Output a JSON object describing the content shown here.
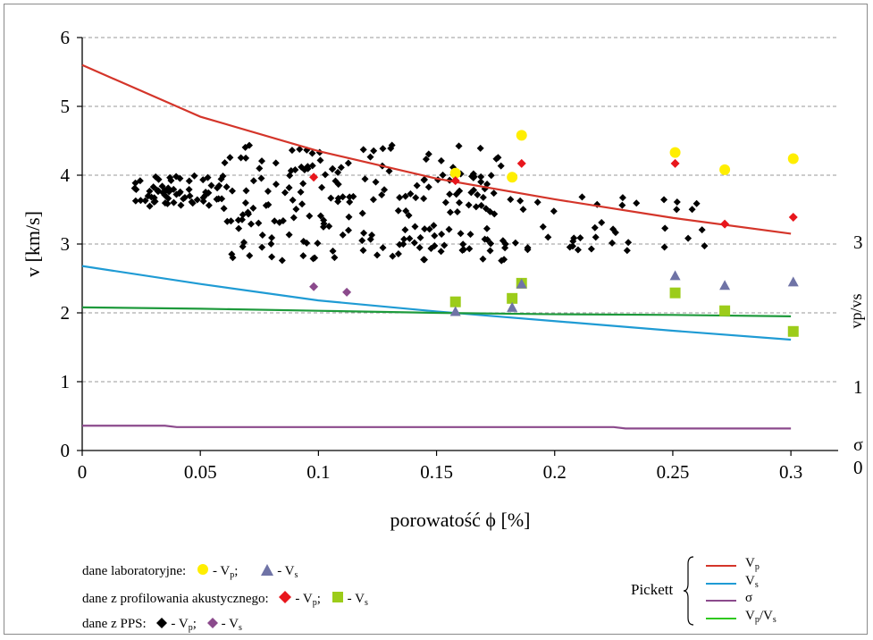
{
  "chart_data": {
    "type": "scatter",
    "xlabel": "porowatość ϕ [%]",
    "ylabel": "v [km/s]",
    "xlim": [
      0,
      0.32
    ],
    "ylim": [
      0,
      6
    ],
    "x_ticks": [
      "0",
      "0.05",
      "0.1",
      "0.15",
      "0.2",
      "0.25",
      "0.3"
    ],
    "y_ticks": [
      "0",
      "1",
      "2",
      "3",
      "4",
      "5",
      "6"
    ],
    "right_ticks": [
      "0",
      "1",
      "3"
    ],
    "right_axis_labels": {
      "ratio": "vp/vs",
      "sigma": "σ"
    },
    "grid": "horizontal-dashed",
    "pickett_lines": [
      {
        "name": "Vp",
        "color": "#d4352a",
        "x": [
          0,
          0.05,
          0.1,
          0.15,
          0.2,
          0.25,
          0.3
        ],
        "y": [
          5.6,
          4.85,
          4.35,
          3.95,
          3.65,
          3.38,
          3.15
        ]
      },
      {
        "name": "Vs",
        "color": "#1f9bd4",
        "x": [
          0,
          0.05,
          0.1,
          0.15,
          0.2,
          0.25,
          0.3
        ],
        "y": [
          2.68,
          2.42,
          2.18,
          2.02,
          1.88,
          1.74,
          1.61
        ]
      },
      {
        "name": "σ",
        "color": "#8b4a8c",
        "x": [
          0,
          0.035,
          0.04,
          0.225,
          0.23,
          0.3
        ],
        "y": [
          0.36,
          0.36,
          0.34,
          0.34,
          0.32,
          0.32
        ]
      },
      {
        "name": "Vp/Vs",
        "color": "#1e9a3c",
        "x": [
          0,
          0.05,
          0.1,
          0.15,
          0.2,
          0.25,
          0.3
        ],
        "y": [
          2.08,
          2.06,
          2.03,
          2.0,
          1.98,
          1.97,
          1.95
        ]
      }
    ],
    "lab_vp": [
      [
        0.158,
        4.03
      ],
      [
        0.182,
        3.97
      ],
      [
        0.186,
        4.58
      ],
      [
        0.251,
        4.33
      ],
      [
        0.272,
        4.08
      ],
      [
        0.301,
        4.24
      ]
    ],
    "lab_vs": [
      [
        0.158,
        2.02
      ],
      [
        0.182,
        2.08
      ],
      [
        0.186,
        2.42
      ],
      [
        0.251,
        2.54
      ],
      [
        0.272,
        2.4
      ],
      [
        0.301,
        2.45
      ]
    ],
    "acoustic_vp": [
      [
        0.098,
        3.97
      ],
      [
        0.158,
        3.92
      ],
      [
        0.186,
        4.17
      ],
      [
        0.251,
        4.17
      ],
      [
        0.272,
        3.29
      ],
      [
        0.301,
        3.39
      ]
    ],
    "acoustic_vs": [
      [
        0.158,
        2.16
      ],
      [
        0.182,
        2.21
      ],
      [
        0.186,
        2.43
      ],
      [
        0.251,
        2.29
      ],
      [
        0.272,
        2.03
      ],
      [
        0.301,
        1.73
      ]
    ],
    "pps_vs": [
      [
        0.098,
        2.38
      ],
      [
        0.112,
        2.3
      ]
    ],
    "pps_vp_cloud": {
      "x_range": [
        0.022,
        0.268
      ],
      "y_range": [
        2.72,
        4.45
      ],
      "count": 320,
      "seed": 7
    }
  },
  "legend": {
    "lab_label": "dane laboratoryjne:",
    "acoustic_label": "dane z profilowania akustycznego:",
    "pps_label": "dane z PPS:",
    "vp_item": "- V",
    "vp_sub": "p",
    "vs_item": "- V",
    "vs_sub": "s",
    "sep": ";",
    "pickett_title": "Pickett",
    "pickett_items": [
      {
        "main": "V",
        "sub": "p"
      },
      {
        "main": "V",
        "sub": "s"
      },
      {
        "main": "σ",
        "sub": ""
      },
      {
        "main": "V",
        "sub": "p",
        "tail": "/V",
        "tail_sub": "s"
      }
    ]
  },
  "colors": {
    "lab": "#ffee00",
    "lab_tri": "#6f73a6",
    "acoustic_vp": "#e8161c",
    "acoustic_vs": "#9ccc1a",
    "pps_vp": "#000000",
    "pps_vs": "#8b4a8c",
    "ratio_label": "#55c020",
    "sigma_label": "#8b4a8c"
  }
}
